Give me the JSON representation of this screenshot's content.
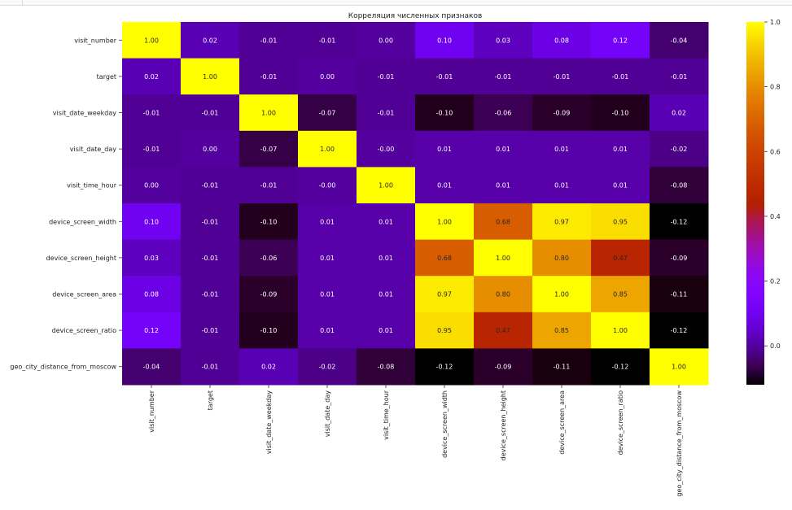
{
  "chart_data": {
    "type": "heatmap",
    "title": "Корреляция численных признаков",
    "rows": [
      "visit_number",
      "target",
      "visit_date_weekday",
      "visit_date_day",
      "visit_time_hour",
      "device_screen_width",
      "device_screen_height",
      "device_screen_area",
      "device_screen_ratio",
      "geo_city_distance_from_moscow"
    ],
    "columns": [
      "visit_number",
      "target",
      "visit_date_weekday",
      "visit_date_day",
      "visit_time_hour",
      "device_screen_width",
      "device_screen_height",
      "device_screen_area",
      "device_screen_ratio",
      "geo_city_distance_from_moscow"
    ],
    "values": [
      [
        1.0,
        0.02,
        -0.01,
        -0.01,
        0.0,
        0.1,
        0.03,
        0.08,
        0.12,
        -0.04
      ],
      [
        0.02,
        1.0,
        -0.01,
        0.0,
        -0.01,
        -0.01,
        -0.01,
        -0.01,
        -0.01,
        -0.01
      ],
      [
        -0.01,
        -0.01,
        1.0,
        -0.07,
        -0.01,
        -0.1,
        -0.06,
        -0.09,
        -0.1,
        0.02
      ],
      [
        -0.01,
        0.0,
        -0.07,
        1.0,
        -0.0,
        0.01,
        0.01,
        0.01,
        0.01,
        -0.02
      ],
      [
        0.0,
        -0.01,
        -0.01,
        -0.0,
        1.0,
        0.01,
        0.01,
        0.01,
        0.01,
        -0.08
      ],
      [
        0.1,
        -0.01,
        -0.1,
        0.01,
        0.01,
        1.0,
        0.68,
        0.97,
        0.95,
        -0.12
      ],
      [
        0.03,
        -0.01,
        -0.06,
        0.01,
        0.01,
        0.68,
        1.0,
        0.8,
        0.47,
        -0.09
      ],
      [
        0.08,
        -0.01,
        -0.09,
        0.01,
        0.01,
        0.97,
        0.8,
        1.0,
        0.85,
        -0.11
      ],
      [
        0.12,
        -0.01,
        -0.1,
        0.01,
        0.01,
        0.95,
        0.47,
        0.85,
        1.0,
        -0.12
      ],
      [
        -0.04,
        -0.01,
        0.02,
        -0.02,
        -0.08,
        -0.12,
        -0.09,
        -0.11,
        -0.12,
        1.0
      ]
    ],
    "labels": [
      [
        "1.00",
        "0.02",
        "-0.01",
        "-0.01",
        "0.00",
        "0.10",
        "0.03",
        "0.08",
        "0.12",
        "-0.04"
      ],
      [
        "0.02",
        "1.00",
        "-0.01",
        "0.00",
        "-0.01",
        "-0.01",
        "-0.01",
        "-0.01",
        "-0.01",
        "-0.01"
      ],
      [
        "-0.01",
        "-0.01",
        "1.00",
        "-0.07",
        "-0.01",
        "-0.10",
        "-0.06",
        "-0.09",
        "-0.10",
        "0.02"
      ],
      [
        "-0.01",
        "0.00",
        "-0.07",
        "1.00",
        "-0.00",
        "0.01",
        "0.01",
        "0.01",
        "0.01",
        "-0.02"
      ],
      [
        "0.00",
        "-0.01",
        "-0.01",
        "-0.00",
        "1.00",
        "0.01",
        "0.01",
        "0.01",
        "0.01",
        "-0.08"
      ],
      [
        "0.10",
        "-0.01",
        "-0.10",
        "0.01",
        "0.01",
        "1.00",
        "0.68",
        "0.97",
        "0.95",
        "-0.12"
      ],
      [
        "0.03",
        "-0.01",
        "-0.06",
        "0.01",
        "0.01",
        "0.68",
        "1.00",
        "0.80",
        "0.47",
        "-0.09"
      ],
      [
        "0.08",
        "-0.01",
        "-0.09",
        "0.01",
        "0.01",
        "0.97",
        "0.80",
        "1.00",
        "0.85",
        "-0.11"
      ],
      [
        "0.12",
        "-0.01",
        "-0.10",
        "0.01",
        "0.01",
        "0.95",
        "0.47",
        "0.85",
        "1.00",
        "-0.12"
      ],
      [
        "-0.04",
        "-0.01",
        "0.02",
        "-0.02",
        "-0.08",
        "-0.12",
        "-0.09",
        "-0.11",
        "-0.12",
        "1.00"
      ]
    ],
    "colorscale": "gnuplot",
    "vmin": -0.12,
    "vmax": 1.0,
    "colorbar": {
      "ticks": [
        0.0,
        0.2,
        0.4,
        0.6,
        0.8,
        1.0
      ],
      "tick_labels": [
        "0.0",
        "0.2",
        "0.4",
        "0.6",
        "0.8",
        "1.0"
      ],
      "placement": "right"
    },
    "grid": false
  }
}
